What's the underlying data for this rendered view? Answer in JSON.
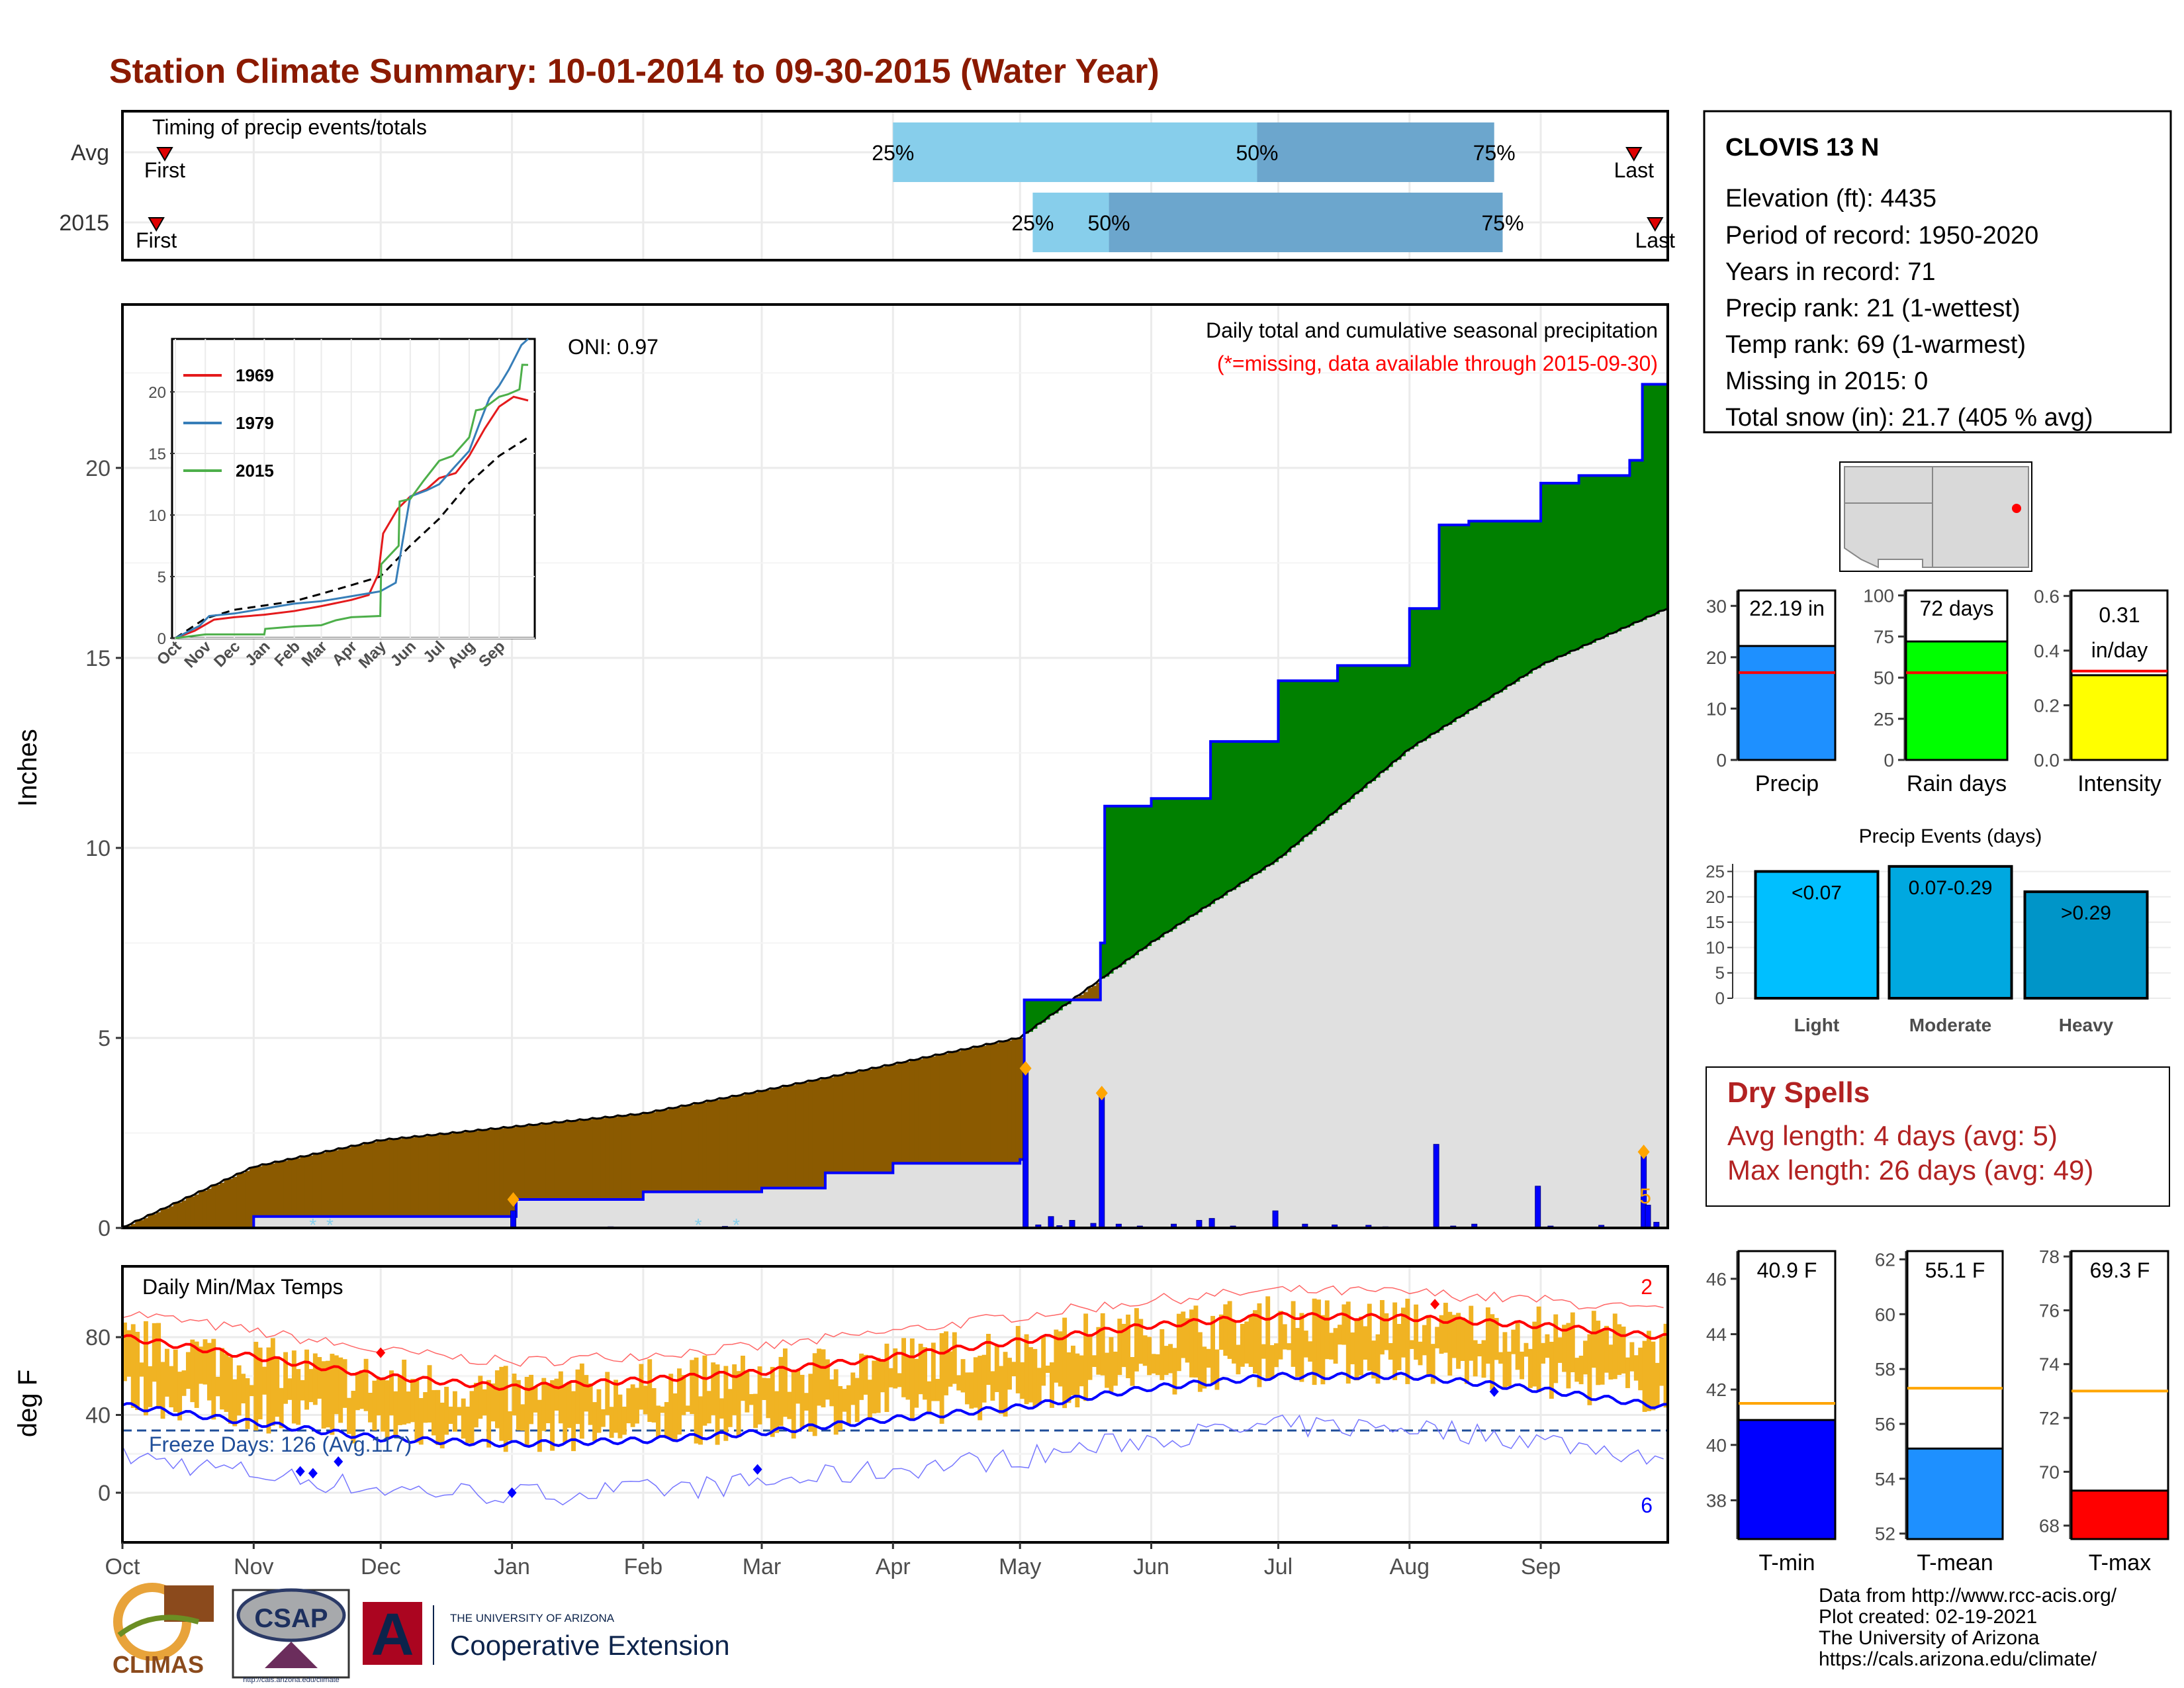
{
  "title": "Station Climate Summary: 10-01-2014 to 09-30-2015 (Water Year)",
  "timing_panel": {
    "label": "Timing of precip events/totals",
    "rows": [
      {
        "label": "Avg",
        "first_label": "First",
        "last_label": "Last",
        "p25": "25%",
        "p50": "50%",
        "p75": "75%",
        "first_day": 10,
        "last_day": 357,
        "q25_day": 182,
        "q50_day": 268,
        "q75_day": 324
      },
      {
        "label": "2015",
        "first_label": "First",
        "last_label": "Last",
        "p25": "25%",
        "p50": "50%",
        "p75": "75%",
        "first_day": 8,
        "last_day": 362,
        "q25_day": 215,
        "q50_day": 233,
        "q75_day": 326
      }
    ]
  },
  "month_labels": [
    "Oct",
    "Nov",
    "Dec",
    "Jan",
    "Feb",
    "Mar",
    "Apr",
    "May",
    "Jun",
    "Jul",
    "Aug",
    "Sep"
  ],
  "month_starts": [
    0,
    31,
    61,
    92,
    123,
    151,
    182,
    212,
    243,
    273,
    304,
    335
  ],
  "precip_panel": {
    "ylabel": "Inches",
    "yticks": [
      0,
      5,
      10,
      15,
      20
    ],
    "ylim": [
      0,
      24.3
    ],
    "oni": "ONI: 0.97",
    "header": "Daily total and cumulative seasonal precipitation",
    "missing_note": "(*=missing, data available through 2015-09-30)",
    "right_count": "5"
  },
  "inset": {
    "xticks": [
      "Oct",
      "Nov",
      "Dec",
      "Jan",
      "Feb",
      "Mar",
      "Apr",
      "May",
      "Jun",
      "Jul",
      "Aug",
      "Sep"
    ],
    "yticks": [
      0,
      5,
      10,
      15,
      20
    ],
    "legend": [
      {
        "name": "1969",
        "color": "#e41a1c"
      },
      {
        "name": "1979",
        "color": "#377eb8"
      },
      {
        "name": "2015",
        "color": "#4daf4a"
      }
    ]
  },
  "temp_panel": {
    "ylabel": "deg F",
    "yticks": [
      0,
      40,
      80
    ],
    "label": "Daily Min/Max Temps",
    "freeze": "Freeze Days: 126 (Avg.117)",
    "count_top": "2",
    "count_bottom": "6"
  },
  "station": {
    "name": "CLOVIS 13 N",
    "lines": [
      "Elevation (ft): 4435",
      "Period of record: 1950-2020",
      "Years in record: 71",
      "Precip rank: 21 (1-wettest)",
      "Temp rank: 69 (1-warmest)",
      "Missing in 2015: 0",
      "Total snow (in): 21.7 (405 % avg)"
    ]
  },
  "mini_bars": [
    {
      "label": "Precip",
      "value_text": "22.19 in",
      "value": 22.19,
      "avg": 17,
      "ymax": 33,
      "yticks": [
        0,
        10,
        20,
        30
      ],
      "color": "#1e90ff"
    },
    {
      "label": "Rain days",
      "value_text": "72 days",
      "value": 72,
      "avg": 53,
      "ymax": 103,
      "yticks": [
        0,
        25,
        50,
        75,
        100
      ],
      "color": "#00ff00"
    },
    {
      "label": "Intensity",
      "value_text": "0.31 in/day",
      "value_line1": "0.31",
      "value_line2": "in/day",
      "value": 0.31,
      "avg": 0.325,
      "ymax": 0.62,
      "yticks": [
        "0.0",
        "0.2",
        "0.4",
        "0.6"
      ],
      "color": "#ffff00"
    }
  ],
  "precip_events": {
    "title": "Precip Events (days)",
    "yticks": [
      0,
      5,
      10,
      15,
      20,
      25
    ],
    "ymax": 26.5,
    "bars": [
      {
        "label": "Light",
        "range": "<0.07",
        "value": 25,
        "color": "#00bfff"
      },
      {
        "label": "Moderate",
        "range": "0.07-0.29",
        "value": 26,
        "color": "#00a8e0"
      },
      {
        "label": "Heavy",
        "range": ">0.29",
        "value": 21,
        "color": "#0095c8"
      }
    ]
  },
  "dry_spells": {
    "title": "Dry Spells",
    "avg_line": "Avg length: 4 days (avg: 5)",
    "max_line": "Max length: 26 days (avg: 49)"
  },
  "temp_bars": [
    {
      "label": "T-min",
      "value_text": "40.9 F",
      "value": 40.9,
      "avg": 41.5,
      "ymin": 36.6,
      "ymax": 47.0,
      "yticks": [
        38,
        40,
        42,
        44,
        46
      ],
      "color": "#0000ff"
    },
    {
      "label": "T-mean",
      "value_text": "55.1 F",
      "value": 55.1,
      "avg": 57.3,
      "ymin": 51.8,
      "ymax": 62.3,
      "yticks": [
        52,
        54,
        56,
        58,
        60,
        62
      ],
      "color": "#1e90ff"
    },
    {
      "label": "T-max",
      "value_text": "69.3 F",
      "value": 69.3,
      "avg": 73.0,
      "ymin": 67.5,
      "ymax": 78.2,
      "yticks": [
        68,
        70,
        72,
        74,
        76,
        78
      ],
      "color": "#ff0000"
    }
  ],
  "credits": [
    "Data from http://www.rcc-acis.org/",
    "Plot created: 02-19-2021",
    "The University of Arizona",
    "https://cals.arizona.edu/climate/"
  ],
  "logos": {
    "climas": "CLIMAS",
    "csap": "CSAP",
    "csap_url": "http://cals.arizona.edu/climate",
    "ua_small": "THE UNIVERSITY OF ARIZONA",
    "ua_big": "Cooperative Extension"
  },
  "chart_data": {
    "type": "area",
    "title": "Daily total and cumulative seasonal precipitation",
    "ylabel": "Inches",
    "ylim": [
      0,
      24.3
    ],
    "series": [
      {
        "name": "2015 cumulative",
        "x": [
          "Oct 1",
          "Nov 1",
          "Dec 1",
          "Jan 1",
          "Jan 2",
          "Feb 1",
          "Mar 1",
          "Mar 16",
          "Apr 1",
          "May 1",
          "May 2",
          "May 20",
          "May 21",
          "Jun 1",
          "Jun 15",
          "Jul 1",
          "Jul 15",
          "Aug 1",
          "Aug 8",
          "Aug 15",
          "Sep 1",
          "Sep 10",
          "Sep 22",
          "Sep 25",
          "Sep 30"
        ],
        "values": [
          0.0,
          0.3,
          0.3,
          0.3,
          0.75,
          0.95,
          1.05,
          1.45,
          1.7,
          1.8,
          6.0,
          7.5,
          11.1,
          11.3,
          12.8,
          14.4,
          14.8,
          16.3,
          18.5,
          18.6,
          19.6,
          19.8,
          20.2,
          22.2,
          22.19
        ]
      },
      {
        "name": "Average cumulative",
        "x": [
          "Oct 1",
          "Nov 1",
          "Dec 1",
          "Jan 1",
          "Feb 1",
          "Mar 1",
          "Apr 1",
          "May 1",
          "Jun 1",
          "Jul 1",
          "Aug 1",
          "Sep 1",
          "Sep 30"
        ],
        "values": [
          0.0,
          1.6,
          2.3,
          2.65,
          3.0,
          3.6,
          4.3,
          5.0,
          7.5,
          9.7,
          12.6,
          14.8,
          16.3
        ]
      }
    ]
  }
}
